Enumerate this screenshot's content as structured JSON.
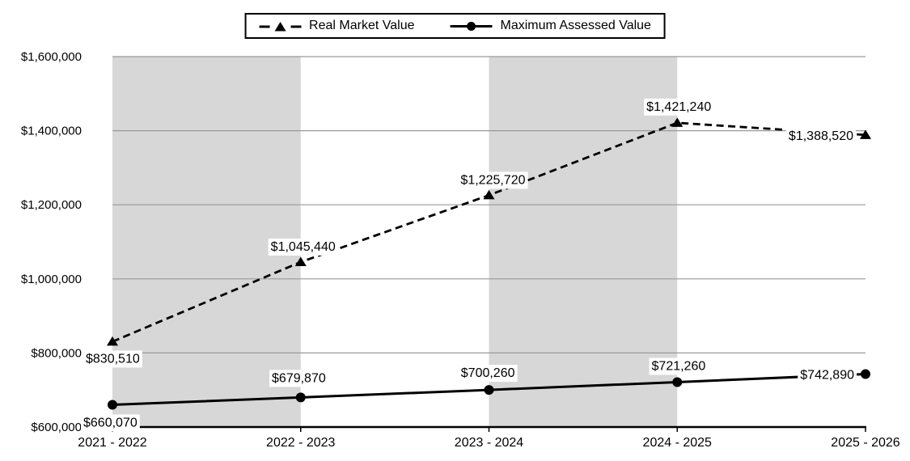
{
  "chart_data": {
    "type": "line",
    "categories": [
      "2021 - 2022",
      "2022 - 2023",
      "2023 - 2024",
      "2024 - 2025",
      "2025 - 2026"
    ],
    "series": [
      {
        "name": "Real Market Value",
        "values": [
          830510,
          1045440,
          1225720,
          1421240,
          1388520
        ],
        "labels": [
          "$830,510",
          "$1,045,440",
          "$1,225,720",
          "$1,421,240",
          "$1,388,520"
        ],
        "line_style": "dashed",
        "marker": "triangle"
      },
      {
        "name": "Maximum Assessed Value",
        "values": [
          660070,
          679870,
          700260,
          721260,
          742890
        ],
        "labels": [
          "$660,070",
          "$679,870",
          "$700,260",
          "$721,260",
          "$742,890"
        ],
        "line_style": "solid",
        "marker": "circle"
      }
    ],
    "y_axis": {
      "min": 600000,
      "max": 1600000,
      "step": 200000,
      "tick_labels": [
        "$600,000",
        "$800,000",
        "$1,000,000",
        "$1,200,000",
        "$1,400,000",
        "$1,600,000"
      ]
    },
    "legend_position": "top",
    "grid": true,
    "plot_bands": [
      [
        0,
        1
      ],
      [
        2,
        3
      ]
    ],
    "colors": {
      "series": "#000000",
      "gridline": "#999999",
      "band": "#d7d7d7",
      "axis": "#000000",
      "background": "#ffffff",
      "text": "#000000"
    }
  }
}
